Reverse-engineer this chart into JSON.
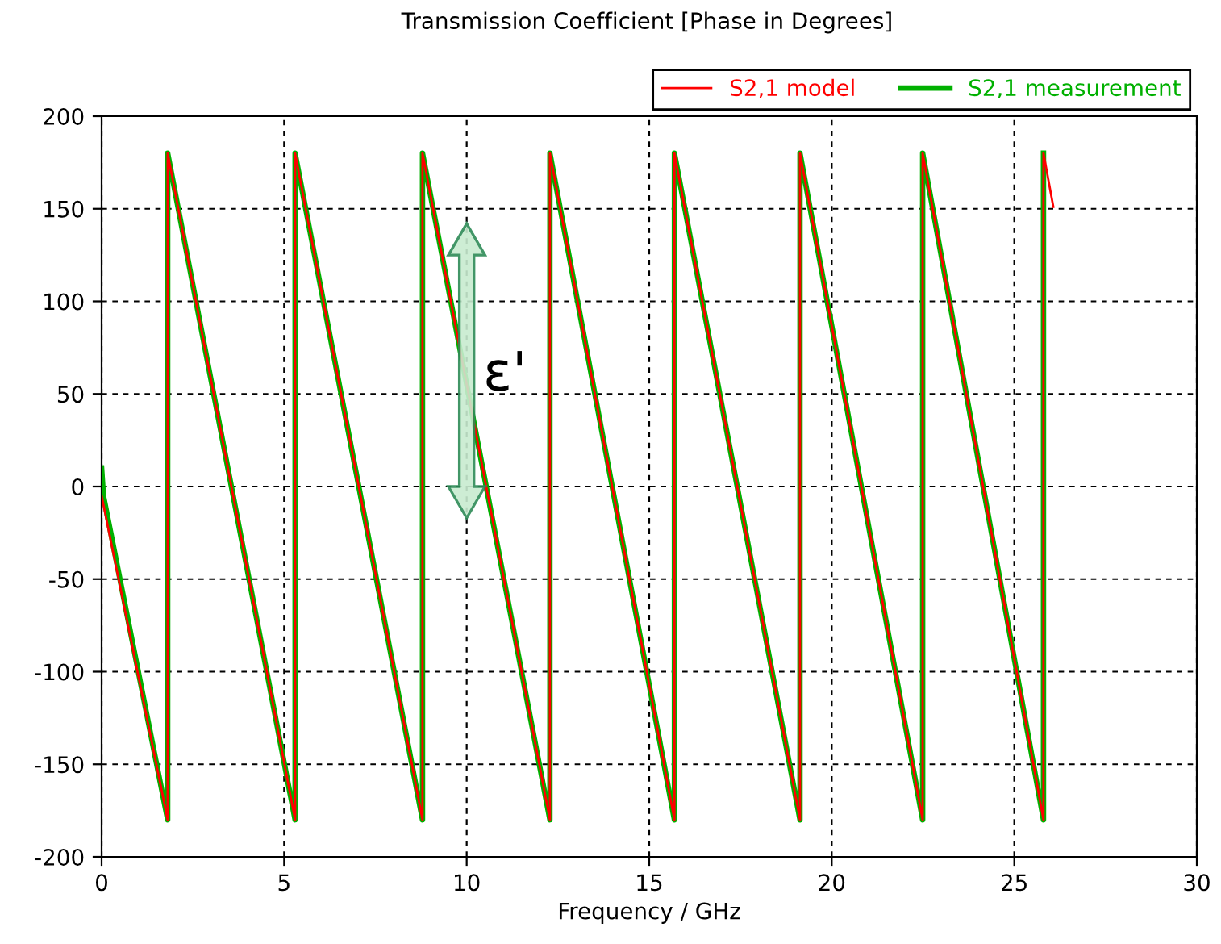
{
  "chart_data": {
    "type": "line",
    "title": "Transmission Coefficient [Phase in Degrees]",
    "xlabel": "Frequency / GHz",
    "xlim": [
      0,
      30
    ],
    "ylim": [
      -200,
      200
    ],
    "xticks": [
      0,
      5,
      10,
      15,
      20,
      25,
      30
    ],
    "yticks": [
      -200,
      -150,
      -100,
      -50,
      0,
      50,
      100,
      150,
      200
    ],
    "grid": true,
    "legend": "top right",
    "line_style": "solid",
    "marker": "none",
    "annotations": [
      "ε'"
    ],
    "series": [
      {
        "name": "S2,1 model",
        "color": "#ff0000",
        "x": [
          0,
          1.81,
          1.81,
          5.3,
          5.3,
          8.79,
          8.79,
          12.28,
          12.28,
          15.69,
          15.69,
          19.13,
          19.13,
          22.49,
          22.49,
          25.8,
          25.8,
          26.07
        ],
        "values": [
          -5,
          -180,
          180,
          -180,
          180,
          -180,
          180,
          -180,
          180,
          -180,
          180,
          -180,
          180,
          -180,
          180,
          -180,
          180,
          151
        ]
      },
      {
        "name": "S2,1 measurement",
        "color": "#00b000",
        "x": [
          0,
          0.05,
          1.81,
          1.81,
          5.3,
          5.3,
          8.79,
          8.79,
          12.28,
          12.28,
          15.69,
          15.69,
          19.13,
          19.13,
          22.49,
          22.49,
          25.8,
          25.8
        ],
        "values": [
          10,
          -5,
          -180,
          180,
          -180,
          180,
          -180,
          180,
          -180,
          180,
          -180,
          180,
          -180,
          180,
          -180,
          180,
          -180,
          180
        ]
      }
    ]
  }
}
